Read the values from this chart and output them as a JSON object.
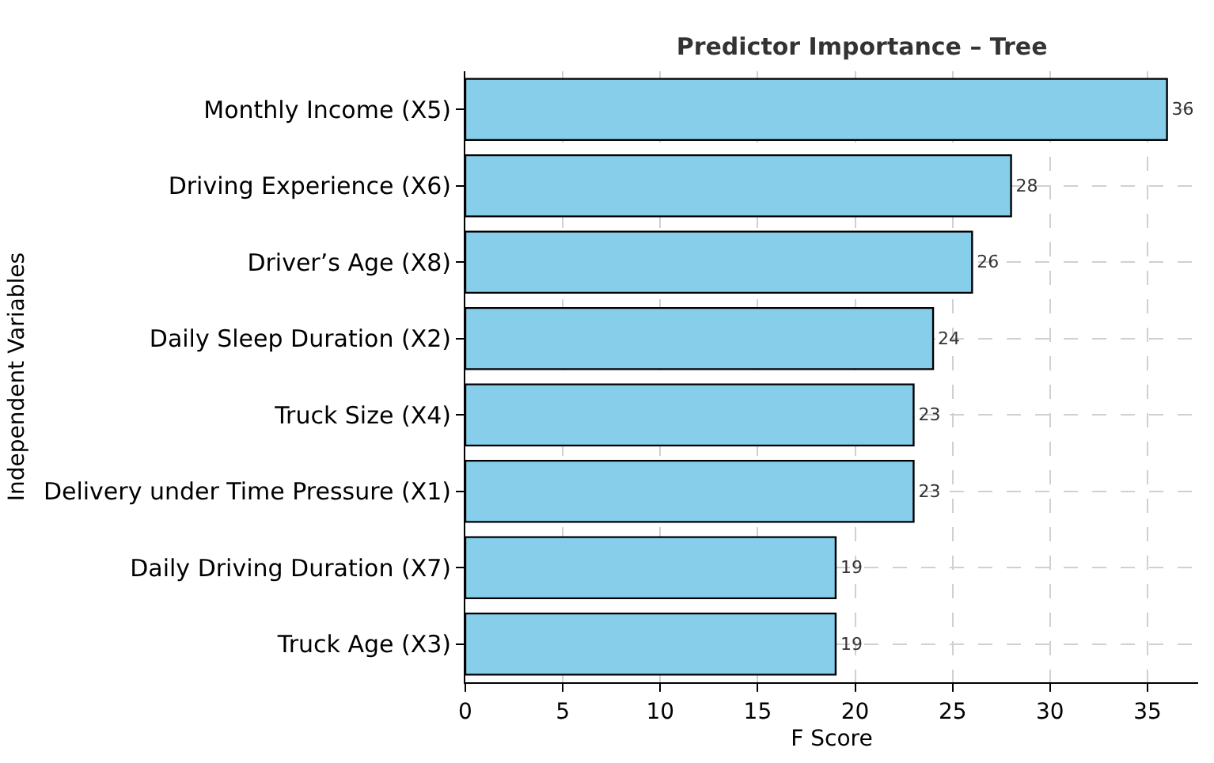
{
  "chart_data": {
    "type": "bar",
    "orientation": "horizontal",
    "title": "Predictor Importance – Tree",
    "xlabel": "F Score",
    "ylabel": "Independent Variables",
    "categories": [
      "Monthly Income (X5)",
      "Driving Experience (X6)",
      "Driver’s Age (X8)",
      "Daily Sleep Duration (X2)",
      "Truck Size (X4)",
      "Delivery under Time Pressure (X1)",
      "Daily Driving Duration (X7)",
      "Truck Age (X3)"
    ],
    "values": [
      36,
      28,
      26,
      24,
      23,
      23,
      19,
      19
    ],
    "color": "#87ceeb",
    "xlim": [
      0,
      37.6
    ],
    "xticks": [
      0,
      5,
      10,
      15,
      20,
      25,
      30,
      35
    ],
    "grid": true,
    "data_labels": true
  }
}
